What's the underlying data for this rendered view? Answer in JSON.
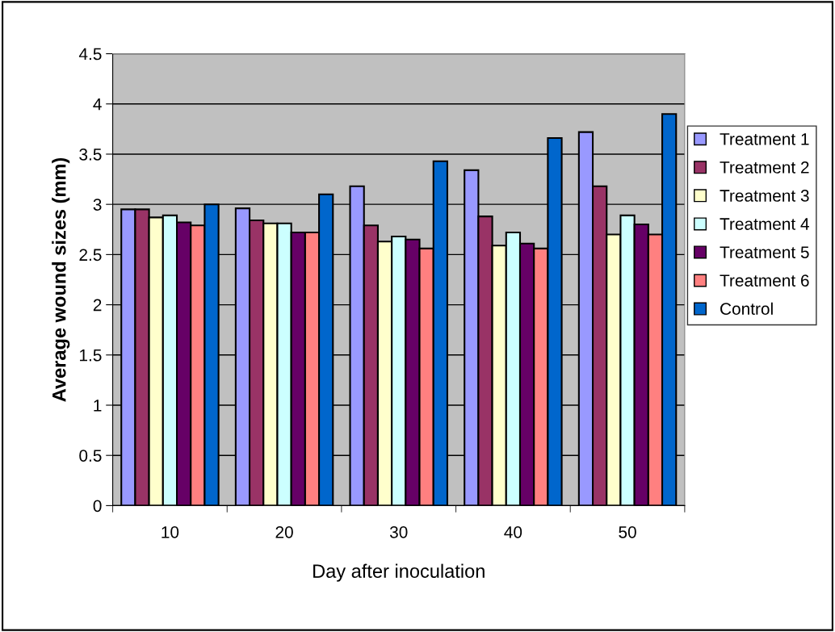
{
  "chart_data": {
    "type": "bar",
    "xlabel": "Day after inoculation",
    "ylabel": "Average wound sizes (mm)",
    "categories": [
      "10",
      "20",
      "30",
      "40",
      "50"
    ],
    "series": [
      {
        "name": "Treatment 1",
        "color": "#9999ff",
        "values": [
          2.95,
          2.96,
          3.18,
          3.34,
          3.72
        ]
      },
      {
        "name": "Treatment 2",
        "color": "#993366",
        "values": [
          2.95,
          2.84,
          2.79,
          2.88,
          3.18
        ]
      },
      {
        "name": "Treatment 3",
        "color": "#ffffcc",
        "values": [
          2.87,
          2.81,
          2.63,
          2.59,
          2.7
        ]
      },
      {
        "name": "Treatment 4",
        "color": "#ccffff",
        "values": [
          2.89,
          2.81,
          2.68,
          2.72,
          2.89
        ]
      },
      {
        "name": "Treatment 5",
        "color": "#660066",
        "values": [
          2.82,
          2.72,
          2.65,
          2.61,
          2.8
        ]
      },
      {
        "name": "Treatment 6",
        "color": "#ff8080",
        "values": [
          2.79,
          2.72,
          2.56,
          2.56,
          2.7
        ]
      },
      {
        "name": "Control",
        "color": "#0066cc",
        "values": [
          3.0,
          3.1,
          3.43,
          3.66,
          3.9
        ]
      }
    ],
    "ylim": [
      0,
      4.5
    ],
    "yticks": [
      0,
      0.5,
      1,
      1.5,
      2,
      2.5,
      3,
      3.5,
      4,
      4.5
    ],
    "grid": "y",
    "legend": "right"
  }
}
